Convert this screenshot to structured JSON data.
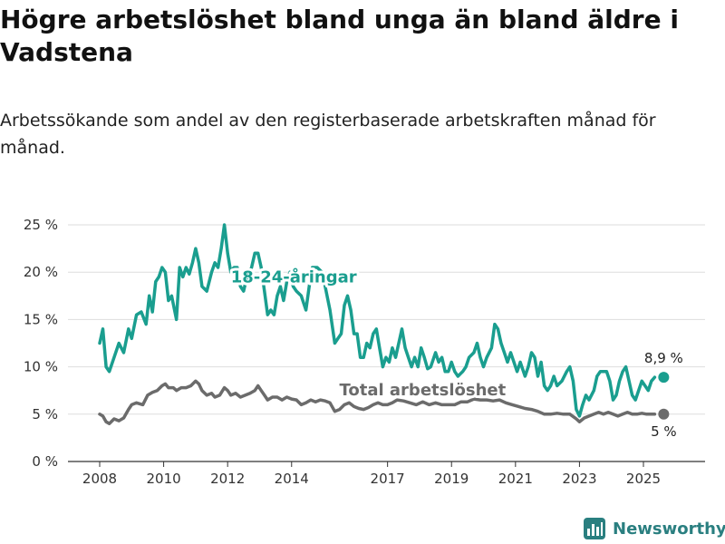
{
  "title": "Högre arbetslöshet bland unga än bland äldre i Vadstena",
  "subtitle": "Arbetssökande som andel av den registerbaserade arbetskraften månad för månad.",
  "brand": {
    "name": "Newsworthy",
    "icon": "bar-chart-logo-icon"
  },
  "colors": {
    "youth": "#1a9e8f",
    "total": "#6b6b6b",
    "grid": "#dddddd",
    "axis": "#333333"
  },
  "chart_data": {
    "type": "line",
    "xlabel": "",
    "ylabel": "",
    "xlim": [
      2007.5,
      2026.7
    ],
    "ylim": [
      0,
      25
    ],
    "grid": true,
    "y_ticks": [
      0,
      5,
      10,
      15,
      20,
      25
    ],
    "y_tick_labels": [
      "0 %",
      "5 %",
      "10 %",
      "15 %",
      "20 %",
      "25 %"
    ],
    "x_ticks": [
      2008,
      2010,
      2012,
      2014,
      2017,
      2019,
      2021,
      2023,
      2025
    ],
    "x_tick_labels": [
      "2008",
      "2010",
      "2012",
      "2014",
      "2017",
      "2019",
      "2021",
      "2023",
      "2025"
    ],
    "series": [
      {
        "name": "18-24-åringar",
        "label": "18-24-åringar",
        "end_label": "8,9 %",
        "end_value": 8.9,
        "points": [
          [
            2008.0,
            12.5
          ],
          [
            2008.1,
            14.0
          ],
          [
            2008.2,
            10.0
          ],
          [
            2008.3,
            9.5
          ],
          [
            2008.45,
            11.0
          ],
          [
            2008.6,
            12.5
          ],
          [
            2008.75,
            11.5
          ],
          [
            2008.9,
            14.0
          ],
          [
            2009.0,
            13.0
          ],
          [
            2009.15,
            15.5
          ],
          [
            2009.3,
            15.8
          ],
          [
            2009.45,
            14.5
          ],
          [
            2009.55,
            17.5
          ],
          [
            2009.65,
            15.8
          ],
          [
            2009.75,
            19.0
          ],
          [
            2009.85,
            19.5
          ],
          [
            2009.95,
            20.5
          ],
          [
            2010.05,
            20.0
          ],
          [
            2010.15,
            17.0
          ],
          [
            2010.25,
            17.5
          ],
          [
            2010.4,
            15.0
          ],
          [
            2010.5,
            20.5
          ],
          [
            2010.6,
            19.5
          ],
          [
            2010.7,
            20.5
          ],
          [
            2010.8,
            19.8
          ],
          [
            2010.9,
            21.0
          ],
          [
            2011.0,
            22.5
          ],
          [
            2011.1,
            21.0
          ],
          [
            2011.2,
            18.5
          ],
          [
            2011.35,
            18.0
          ],
          [
            2011.5,
            20.0
          ],
          [
            2011.6,
            21.0
          ],
          [
            2011.7,
            20.5
          ],
          [
            2011.8,
            22.5
          ],
          [
            2011.9,
            25.0
          ],
          [
            2012.0,
            22.0
          ],
          [
            2012.1,
            20.0
          ],
          [
            2012.2,
            20.5
          ],
          [
            2012.3,
            20.5
          ],
          [
            2012.4,
            18.5
          ],
          [
            2012.5,
            18.0
          ],
          [
            2012.6,
            19.5
          ],
          [
            2012.75,
            20.5
          ],
          [
            2012.85,
            22.0
          ],
          [
            2012.95,
            22.0
          ],
          [
            2013.05,
            20.5
          ],
          [
            2013.15,
            18.0
          ],
          [
            2013.25,
            15.5
          ],
          [
            2013.35,
            16.0
          ],
          [
            2013.45,
            15.5
          ],
          [
            2013.55,
            17.5
          ],
          [
            2013.65,
            18.5
          ],
          [
            2013.75,
            17.0
          ],
          [
            2013.85,
            19.0
          ],
          [
            2013.95,
            20.0
          ],
          [
            2014.05,
            18.5
          ],
          [
            2014.15,
            18.0
          ],
          [
            2014.3,
            17.5
          ],
          [
            2014.45,
            16.0
          ],
          [
            2014.55,
            18.5
          ],
          [
            2014.65,
            20.5
          ],
          [
            2014.8,
            20.5
          ],
          [
            2014.95,
            20.0
          ],
          [
            2015.05,
            18.5
          ],
          [
            2015.2,
            16.0
          ],
          [
            2015.35,
            12.5
          ],
          [
            2015.45,
            13.0
          ],
          [
            2015.55,
            13.5
          ],
          [
            2015.65,
            16.5
          ],
          [
            2015.75,
            17.5
          ],
          [
            2015.85,
            16.0
          ],
          [
            2015.95,
            13.5
          ],
          [
            2016.05,
            13.5
          ],
          [
            2016.15,
            11.0
          ],
          [
            2016.25,
            11.0
          ],
          [
            2016.35,
            12.5
          ],
          [
            2016.45,
            12.0
          ],
          [
            2016.55,
            13.5
          ],
          [
            2016.65,
            14.0
          ],
          [
            2016.75,
            12.0
          ],
          [
            2016.85,
            10.0
          ],
          [
            2016.95,
            11.0
          ],
          [
            2017.05,
            10.5
          ],
          [
            2017.15,
            12.0
          ],
          [
            2017.25,
            11.0
          ],
          [
            2017.35,
            12.5
          ],
          [
            2017.45,
            14.0
          ],
          [
            2017.55,
            12.0
          ],
          [
            2017.65,
            11.0
          ],
          [
            2017.75,
            10.0
          ],
          [
            2017.85,
            11.0
          ],
          [
            2017.95,
            10.0
          ],
          [
            2018.05,
            12.0
          ],
          [
            2018.15,
            11.0
          ],
          [
            2018.25,
            9.8
          ],
          [
            2018.35,
            10.0
          ],
          [
            2018.5,
            11.5
          ],
          [
            2018.6,
            10.5
          ],
          [
            2018.7,
            11.0
          ],
          [
            2018.8,
            9.5
          ],
          [
            2018.9,
            9.5
          ],
          [
            2019.0,
            10.5
          ],
          [
            2019.1,
            9.5
          ],
          [
            2019.2,
            9.0
          ],
          [
            2019.35,
            9.5
          ],
          [
            2019.45,
            10.0
          ],
          [
            2019.55,
            11.0
          ],
          [
            2019.7,
            11.5
          ],
          [
            2019.8,
            12.5
          ],
          [
            2019.9,
            11.0
          ],
          [
            2020.0,
            10.0
          ],
          [
            2020.1,
            11.0
          ],
          [
            2020.25,
            12.0
          ],
          [
            2020.35,
            14.5
          ],
          [
            2020.45,
            14.0
          ],
          [
            2020.55,
            12.5
          ],
          [
            2020.65,
            11.5
          ],
          [
            2020.75,
            10.5
          ],
          [
            2020.85,
            11.5
          ],
          [
            2020.95,
            10.5
          ],
          [
            2021.05,
            9.5
          ],
          [
            2021.15,
            10.5
          ],
          [
            2021.3,
            9.0
          ],
          [
            2021.4,
            10.0
          ],
          [
            2021.5,
            11.5
          ],
          [
            2021.6,
            11.0
          ],
          [
            2021.7,
            9.0
          ],
          [
            2021.8,
            10.5
          ],
          [
            2021.9,
            8.0
          ],
          [
            2022.0,
            7.5
          ],
          [
            2022.1,
            8.0
          ],
          [
            2022.2,
            9.0
          ],
          [
            2022.3,
            8.0
          ],
          [
            2022.45,
            8.5
          ],
          [
            2022.6,
            9.5
          ],
          [
            2022.7,
            10.0
          ],
          [
            2022.8,
            8.5
          ],
          [
            2022.9,
            5.5
          ],
          [
            2023.0,
            4.8
          ],
          [
            2023.1,
            6.0
          ],
          [
            2023.2,
            7.0
          ],
          [
            2023.3,
            6.5
          ],
          [
            2023.45,
            7.5
          ],
          [
            2023.55,
            9.0
          ],
          [
            2023.65,
            9.5
          ],
          [
            2023.75,
            9.5
          ],
          [
            2023.85,
            9.5
          ],
          [
            2023.95,
            8.5
          ],
          [
            2024.05,
            6.5
          ],
          [
            2024.15,
            7.0
          ],
          [
            2024.25,
            8.5
          ],
          [
            2024.35,
            9.5
          ],
          [
            2024.45,
            10.0
          ],
          [
            2024.55,
            8.5
          ],
          [
            2024.65,
            7.0
          ],
          [
            2024.75,
            6.5
          ],
          [
            2024.85,
            7.5
          ],
          [
            2024.95,
            8.5
          ],
          [
            2025.05,
            8.0
          ],
          [
            2025.15,
            7.5
          ],
          [
            2025.25,
            8.5
          ],
          [
            2025.35,
            8.9
          ]
        ]
      },
      {
        "name": "Total arbetslöshet",
        "label": "Total arbetslöshet",
        "end_label": "5 %",
        "end_value": 5.0,
        "points": [
          [
            2008.0,
            5.0
          ],
          [
            2008.1,
            4.8
          ],
          [
            2008.2,
            4.2
          ],
          [
            2008.3,
            4.0
          ],
          [
            2008.45,
            4.5
          ],
          [
            2008.6,
            4.3
          ],
          [
            2008.75,
            4.6
          ],
          [
            2008.9,
            5.5
          ],
          [
            2009.0,
            6.0
          ],
          [
            2009.15,
            6.2
          ],
          [
            2009.35,
            6.0
          ],
          [
            2009.5,
            7.0
          ],
          [
            2009.65,
            7.3
          ],
          [
            2009.8,
            7.5
          ],
          [
            2009.95,
            8.0
          ],
          [
            2010.05,
            8.2
          ],
          [
            2010.15,
            7.8
          ],
          [
            2010.3,
            7.8
          ],
          [
            2010.4,
            7.5
          ],
          [
            2010.55,
            7.8
          ],
          [
            2010.7,
            7.8
          ],
          [
            2010.85,
            8.0
          ],
          [
            2011.0,
            8.5
          ],
          [
            2011.1,
            8.2
          ],
          [
            2011.2,
            7.5
          ],
          [
            2011.35,
            7.0
          ],
          [
            2011.5,
            7.2
          ],
          [
            2011.6,
            6.8
          ],
          [
            2011.75,
            7.0
          ],
          [
            2011.9,
            7.8
          ],
          [
            2012.0,
            7.5
          ],
          [
            2012.1,
            7.0
          ],
          [
            2012.25,
            7.2
          ],
          [
            2012.4,
            6.8
          ],
          [
            2012.55,
            7.0
          ],
          [
            2012.7,
            7.2
          ],
          [
            2012.85,
            7.5
          ],
          [
            2012.95,
            8.0
          ],
          [
            2013.05,
            7.5
          ],
          [
            2013.15,
            7.0
          ],
          [
            2013.25,
            6.5
          ],
          [
            2013.4,
            6.8
          ],
          [
            2013.55,
            6.8
          ],
          [
            2013.7,
            6.5
          ],
          [
            2013.85,
            6.8
          ],
          [
            2014.0,
            6.6
          ],
          [
            2014.15,
            6.5
          ],
          [
            2014.3,
            6.0
          ],
          [
            2014.45,
            6.2
          ],
          [
            2014.6,
            6.5
          ],
          [
            2014.75,
            6.3
          ],
          [
            2014.9,
            6.5
          ],
          [
            2015.05,
            6.4
          ],
          [
            2015.2,
            6.2
          ],
          [
            2015.35,
            5.3
          ],
          [
            2015.5,
            5.5
          ],
          [
            2015.65,
            6.0
          ],
          [
            2015.8,
            6.2
          ],
          [
            2015.95,
            5.8
          ],
          [
            2016.1,
            5.6
          ],
          [
            2016.25,
            5.5
          ],
          [
            2016.4,
            5.7
          ],
          [
            2016.55,
            6.0
          ],
          [
            2016.7,
            6.2
          ],
          [
            2016.85,
            6.0
          ],
          [
            2017.0,
            6.0
          ],
          [
            2017.15,
            6.2
          ],
          [
            2017.3,
            6.5
          ],
          [
            2017.5,
            6.4
          ],
          [
            2017.7,
            6.2
          ],
          [
            2017.9,
            6.0
          ],
          [
            2018.1,
            6.3
          ],
          [
            2018.3,
            6.0
          ],
          [
            2018.5,
            6.2
          ],
          [
            2018.7,
            6.0
          ],
          [
            2018.9,
            6.0
          ],
          [
            2019.1,
            6.0
          ],
          [
            2019.3,
            6.3
          ],
          [
            2019.5,
            6.3
          ],
          [
            2019.7,
            6.6
          ],
          [
            2019.9,
            6.5
          ],
          [
            2020.1,
            6.5
          ],
          [
            2020.3,
            6.4
          ],
          [
            2020.5,
            6.5
          ],
          [
            2020.7,
            6.2
          ],
          [
            2020.9,
            6.0
          ],
          [
            2021.1,
            5.8
          ],
          [
            2021.3,
            5.6
          ],
          [
            2021.5,
            5.5
          ],
          [
            2021.7,
            5.3
          ],
          [
            2021.9,
            5.0
          ],
          [
            2022.1,
            5.0
          ],
          [
            2022.3,
            5.1
          ],
          [
            2022.5,
            5.0
          ],
          [
            2022.7,
            5.0
          ],
          [
            2022.9,
            4.5
          ],
          [
            2023.0,
            4.2
          ],
          [
            2023.15,
            4.6
          ],
          [
            2023.3,
            4.8
          ],
          [
            2023.45,
            5.0
          ],
          [
            2023.6,
            5.2
          ],
          [
            2023.75,
            5.0
          ],
          [
            2023.9,
            5.2
          ],
          [
            2024.05,
            5.0
          ],
          [
            2024.2,
            4.8
          ],
          [
            2024.35,
            5.0
          ],
          [
            2024.5,
            5.2
          ],
          [
            2024.65,
            5.0
          ],
          [
            2024.8,
            5.0
          ],
          [
            2024.95,
            5.1
          ],
          [
            2025.1,
            5.0
          ],
          [
            2025.25,
            5.0
          ],
          [
            2025.35,
            5.0
          ]
        ]
      }
    ]
  }
}
